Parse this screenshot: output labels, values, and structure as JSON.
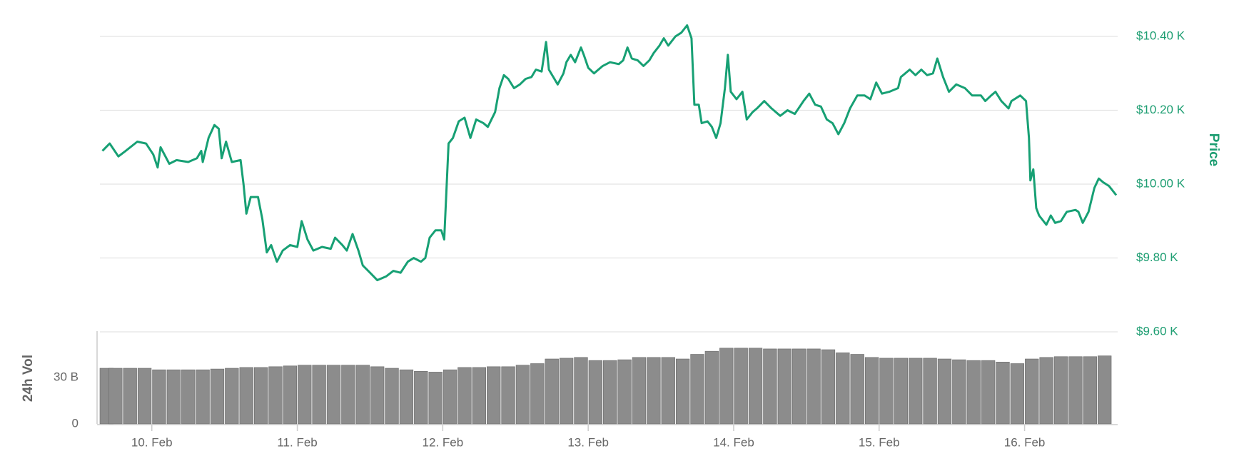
{
  "chart_data": [
    {
      "type": "line",
      "ylabel": "Price",
      "color": "#17a074",
      "grid": true,
      "x": [
        9.66,
        9.71,
        9.77,
        9.82,
        9.9,
        9.96,
        10.01,
        10.04,
        10.06,
        10.12,
        10.17,
        10.25,
        10.31,
        10.34,
        10.35,
        10.39,
        10.43,
        10.46,
        10.48,
        10.51,
        10.55,
        10.61,
        10.63,
        10.65,
        10.68,
        10.73,
        10.76,
        10.79,
        10.82,
        10.86,
        10.9,
        10.95,
        11.0,
        11.03,
        11.07,
        11.11,
        11.17,
        11.23,
        11.26,
        11.31,
        11.34,
        11.38,
        11.42,
        11.45,
        11.5,
        11.55,
        11.61,
        11.66,
        11.71,
        11.76,
        11.8,
        11.85,
        11.88,
        11.91,
        11.95,
        11.99,
        12.01,
        12.04,
        12.07,
        12.11,
        12.15,
        12.19,
        12.23,
        12.28,
        12.31,
        12.36,
        12.39,
        12.42,
        12.45,
        12.49,
        12.53,
        12.57,
        12.61,
        12.64,
        12.68,
        12.71,
        12.73,
        12.76,
        12.79,
        12.83,
        12.85,
        12.88,
        12.91,
        12.95,
        12.97,
        13.0,
        13.04,
        13.1,
        13.15,
        13.21,
        13.24,
        13.27,
        13.3,
        13.34,
        13.38,
        13.42,
        13.45,
        13.49,
        13.52,
        13.55,
        13.6,
        13.64,
        13.68,
        13.71,
        13.73,
        13.76,
        13.78,
        13.82,
        13.85,
        13.88,
        13.91,
        13.94,
        13.96,
        13.98,
        14.02,
        14.06,
        14.09,
        14.13,
        14.16,
        14.21,
        14.26,
        14.32,
        14.37,
        14.42,
        14.48,
        14.52,
        14.56,
        14.6,
        14.64,
        14.68,
        14.72,
        14.76,
        14.8,
        14.85,
        14.9,
        14.94,
        14.98,
        15.02,
        15.07,
        15.13,
        15.15,
        15.21,
        15.25,
        15.29,
        15.33,
        15.37,
        15.4,
        15.44,
        15.48,
        15.53,
        15.59,
        15.64,
        15.7,
        15.73,
        15.77,
        15.8,
        15.84,
        15.89,
        15.91,
        15.97,
        16.01,
        16.03,
        16.04,
        16.06,
        16.08,
        16.1,
        16.15,
        16.18,
        16.21,
        16.25,
        16.29,
        16.35,
        16.37,
        16.4,
        16.44,
        16.48,
        16.51,
        16.54,
        16.58,
        16.63
      ],
      "values": [
        10090,
        10110,
        10075,
        10090,
        10115,
        10110,
        10080,
        10045,
        10100,
        10055,
        10065,
        10060,
        10070,
        10090,
        10060,
        10125,
        10160,
        10150,
        10070,
        10115,
        10060,
        10065,
        10000,
        9920,
        9965,
        9965,
        9905,
        9815,
        9835,
        9790,
        9820,
        9835,
        9830,
        9900,
        9850,
        9820,
        9830,
        9825,
        9855,
        9835,
        9820,
        9865,
        9820,
        9780,
        9760,
        9740,
        9750,
        9765,
        9760,
        9790,
        9800,
        9790,
        9800,
        9855,
        9875,
        9875,
        9850,
        10110,
        10125,
        10170,
        10180,
        10125,
        10175,
        10165,
        10155,
        10195,
        10260,
        10295,
        10285,
        10260,
        10270,
        10285,
        10290,
        10310,
        10305,
        10385,
        10310,
        10290,
        10270,
        10300,
        10330,
        10350,
        10330,
        10370,
        10350,
        10315,
        10300,
        10320,
        10330,
        10325,
        10335,
        10370,
        10340,
        10335,
        10320,
        10335,
        10355,
        10375,
        10395,
        10375,
        10400,
        10410,
        10430,
        10395,
        10215,
        10215,
        10165,
        10170,
        10155,
        10125,
        10165,
        10260,
        10350,
        10250,
        10230,
        10250,
        10175,
        10195,
        10205,
        10225,
        10205,
        10185,
        10200,
        10190,
        10225,
        10245,
        10215,
        10210,
        10175,
        10165,
        10135,
        10165,
        10205,
        10240,
        10240,
        10230,
        10275,
        10245,
        10250,
        10260,
        10290,
        10310,
        10295,
        10310,
        10295,
        10300,
        10340,
        10290,
        10250,
        10270,
        10260,
        10240,
        10240,
        10225,
        10240,
        10250,
        10225,
        10205,
        10225,
        10240,
        10225,
        10125,
        10010,
        10040,
        9935,
        9915,
        9890,
        9915,
        9895,
        9900,
        9925,
        9930,
        9925,
        9895,
        9925,
        9990,
        10015,
        10005,
        9995,
        9970
      ],
      "xlim": [
        9.643,
        16.64
      ],
      "ylim": [
        9600,
        10400
      ],
      "yticks": [
        {
          "value": 9600,
          "label": "$9.60 K"
        },
        {
          "value": 9800,
          "label": "$9.80 K"
        },
        {
          "value": 10000,
          "label": "$10.00 K"
        },
        {
          "value": 10200,
          "label": "$10.20 K"
        },
        {
          "value": 10400,
          "label": "$10.40 K"
        }
      ]
    },
    {
      "type": "bar",
      "ylabel": "24h Vol",
      "color": "#8c8c8c",
      "x": [
        9.65,
        9.75,
        9.85,
        9.95,
        10.05,
        10.15,
        10.25,
        10.35,
        10.45,
        10.55,
        10.65,
        10.75,
        10.85,
        10.95,
        11.05,
        11.15,
        11.25,
        11.35,
        11.45,
        11.55,
        11.65,
        11.75,
        11.85,
        11.95,
        12.05,
        12.15,
        12.25,
        12.35,
        12.45,
        12.55,
        12.65,
        12.75,
        12.85,
        12.95,
        13.05,
        13.15,
        13.25,
        13.35,
        13.45,
        13.55,
        13.65,
        13.75,
        13.85,
        13.95,
        14.05,
        14.15,
        14.25,
        14.35,
        14.45,
        14.55,
        14.65,
        14.75,
        14.85,
        14.95,
        15.05,
        15.15,
        15.25,
        15.35,
        15.45,
        15.55,
        15.65,
        15.75,
        15.85,
        15.95,
        16.05,
        16.15,
        16.25,
        16.35,
        16.45,
        16.55
      ],
      "values": [
        36,
        36,
        36,
        36,
        35,
        35,
        35,
        35,
        35.5,
        36,
        36.5,
        36.5,
        37,
        37.5,
        38,
        38,
        38,
        38,
        38,
        37,
        36,
        35,
        34,
        33.5,
        35,
        36.5,
        36.5,
        37,
        37,
        38,
        39,
        42,
        42.5,
        43,
        41,
        41,
        41.5,
        43,
        43,
        43,
        42,
        45,
        47,
        49,
        49,
        49,
        48.5,
        48.5,
        48.5,
        48.5,
        48,
        46,
        45,
        43,
        42.5,
        42.5,
        42.5,
        42.5,
        42,
        41.5,
        41,
        41,
        40,
        39,
        42,
        43,
        43.5,
        43.5,
        43.5,
        44
      ],
      "xlim": [
        9.643,
        16.64
      ],
      "xticks": [
        {
          "value": 10,
          "label": "10. Feb"
        },
        {
          "value": 11,
          "label": "11. Feb"
        },
        {
          "value": 12,
          "label": "12. Feb"
        },
        {
          "value": 13,
          "label": "13. Feb"
        },
        {
          "value": 14,
          "label": "14. Feb"
        },
        {
          "value": 15,
          "label": "15. Feb"
        },
        {
          "value": 16,
          "label": "16. Feb"
        }
      ],
      "ylim": [
        0,
        60
      ],
      "yticks": [
        0,
        {
          "value": 30,
          "label": "30 B"
        }
      ]
    }
  ]
}
